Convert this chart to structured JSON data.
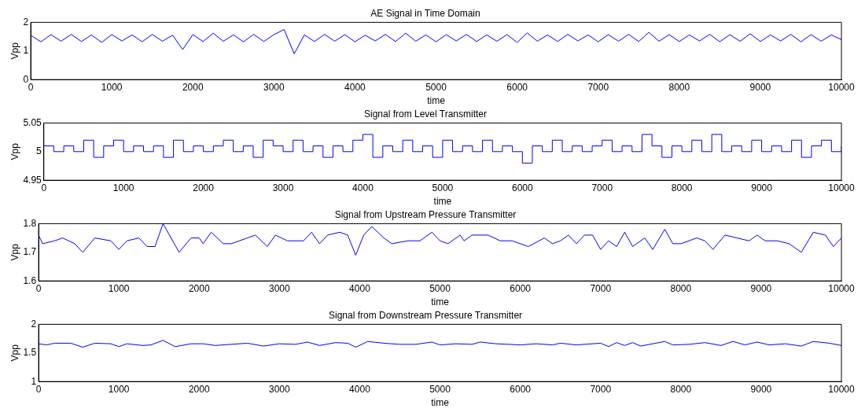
{
  "chart_data": [
    {
      "type": "line",
      "title": "AE Signal in Time Domain",
      "xlabel": "time",
      "ylabel": "Vpp",
      "xlim": [
        0,
        10000
      ],
      "xticks": [
        0,
        1000,
        2000,
        3000,
        4000,
        5000,
        6000,
        7000,
        8000,
        9000,
        10000
      ],
      "ylim": [
        0,
        2
      ],
      "yticks": [
        0,
        1,
        2
      ],
      "series": [
        {
          "color": "#0000ff",
          "x": [
            0,
            125,
            250,
            375,
            500,
            625,
            750,
            875,
            1000,
            1125,
            1250,
            1375,
            1500,
            1625,
            1750,
            1875,
            2000,
            2125,
            2250,
            2375,
            2500,
            2625,
            2750,
            2875,
            3000,
            3125,
            3250,
            3375,
            3500,
            3625,
            3750,
            3875,
            4000,
            4125,
            4250,
            4375,
            4500,
            4625,
            4750,
            4875,
            5000,
            5125,
            5250,
            5375,
            5500,
            5625,
            5750,
            5875,
            6000,
            6125,
            6250,
            6375,
            6500,
            6625,
            6750,
            6875,
            7000,
            7125,
            7250,
            7375,
            7500,
            7625,
            7750,
            7875,
            8000,
            8125,
            8250,
            8375,
            8500,
            8625,
            8750,
            8875,
            9000,
            9125,
            9250,
            9375,
            9500,
            9625,
            9750,
            9875,
            10000
          ],
          "values": [
            1.55,
            1.32,
            1.57,
            1.34,
            1.58,
            1.33,
            1.56,
            1.3,
            1.57,
            1.35,
            1.56,
            1.32,
            1.58,
            1.34,
            1.55,
            1.05,
            1.57,
            1.33,
            1.62,
            1.34,
            1.56,
            1.32,
            1.58,
            1.33,
            1.57,
            1.75,
            0.9,
            1.56,
            1.33,
            1.58,
            1.34,
            1.57,
            1.32,
            1.55,
            1.35,
            1.58,
            1.33,
            1.62,
            1.34,
            1.56,
            1.32,
            1.57,
            1.35,
            1.58,
            1.33,
            1.56,
            1.34,
            1.57,
            1.3,
            1.63,
            1.34,
            1.56,
            1.33,
            1.58,
            1.35,
            1.56,
            1.32,
            1.57,
            1.34,
            1.58,
            1.33,
            1.65,
            1.34,
            1.57,
            1.33,
            1.56,
            1.35,
            1.58,
            1.32,
            1.57,
            1.34,
            1.6,
            1.33,
            1.56,
            1.35,
            1.58,
            1.32,
            1.57,
            1.34,
            1.56,
            1.4
          ]
        }
      ]
    },
    {
      "type": "step",
      "title": "Signal from Level Transmitter",
      "xlabel": "time",
      "ylabel": "Vpp",
      "xlim": [
        0,
        10000
      ],
      "xticks": [
        0,
        1000,
        2000,
        3000,
        4000,
        5000,
        6000,
        7000,
        8000,
        9000,
        10000
      ],
      "ylim": [
        4.95,
        5.05
      ],
      "yticks": [
        4.95,
        5,
        5.05
      ],
      "series": [
        {
          "color": "#0000ff",
          "x": [
            0,
            125,
            250,
            375,
            500,
            625,
            750,
            875,
            1000,
            1125,
            1250,
            1375,
            1500,
            1625,
            1750,
            1875,
            2000,
            2125,
            2250,
            2375,
            2500,
            2625,
            2750,
            2875,
            3000,
            3125,
            3250,
            3375,
            3500,
            3625,
            3750,
            3875,
            4000,
            4125,
            4250,
            4375,
            4500,
            4625,
            4750,
            4875,
            5000,
            5125,
            5250,
            5375,
            5500,
            5625,
            5750,
            5875,
            6000,
            6125,
            6250,
            6375,
            6500,
            6625,
            6750,
            6875,
            7000,
            7125,
            7250,
            7375,
            7500,
            7625,
            7750,
            7875,
            8000,
            8125,
            8250,
            8375,
            8500,
            8625,
            8750,
            8875,
            9000,
            9125,
            9250,
            9375,
            9500,
            9625,
            9750,
            9875,
            10000
          ],
          "values": [
            5.01,
            5,
            5.01,
            5,
            5.02,
            4.99,
            5.01,
            5.02,
            5,
            5.01,
            5,
            5.01,
            4.99,
            5.02,
            5,
            5.01,
            5,
            5.01,
            5.02,
            5,
            5.01,
            4.99,
            5.02,
            5.01,
            5,
            5.02,
            5,
            5.01,
            4.99,
            5.01,
            5,
            5.02,
            5.03,
            4.99,
            5.01,
            5,
            5.02,
            5,
            5.01,
            4.99,
            5.02,
            5,
            5.01,
            5,
            5.02,
            5,
            5.01,
            5,
            4.98,
            5.01,
            5,
            5.02,
            5,
            5.01,
            5,
            5.01,
            5.02,
            5,
            5.01,
            5,
            5.03,
            5.01,
            4.99,
            5.01,
            5,
            5.02,
            5,
            5.03,
            5,
            5.01,
            5,
            5.02,
            5,
            5.01,
            5,
            5.02,
            4.99,
            5.01,
            5.02,
            5,
            5.01
          ]
        }
      ]
    },
    {
      "type": "line",
      "title": "Signal from Upstream Pressure Transmitter",
      "xlabel": "time",
      "ylabel": "Vpp",
      "xlim": [
        0,
        10000
      ],
      "xticks": [
        0,
        1000,
        2000,
        3000,
        4000,
        5000,
        6000,
        7000,
        8000,
        9000,
        10000
      ],
      "ylim": [
        1.6,
        1.8
      ],
      "yticks": [
        1.6,
        1.7,
        1.8
      ],
      "series": [
        {
          "color": "#0000ff",
          "x": [
            0,
            50,
            200,
            300,
            450,
            550,
            700,
            900,
            1000,
            1100,
            1250,
            1350,
            1450,
            1550,
            1750,
            1900,
            2000,
            2050,
            2150,
            2300,
            2400,
            2600,
            2700,
            2850,
            2950,
            3100,
            3300,
            3400,
            3500,
            3600,
            3750,
            3850,
            3950,
            4050,
            4150,
            4300,
            4400,
            4600,
            4750,
            4900,
            5000,
            5100,
            5250,
            5300,
            5400,
            5600,
            5750,
            5900,
            6100,
            6300,
            6400,
            6500,
            6600,
            6700,
            6800,
            6900,
            7000,
            7100,
            7200,
            7300,
            7400,
            7550,
            7650,
            7800,
            7900,
            8000,
            8100,
            8200,
            8300,
            8400,
            8550,
            8700,
            8850,
            8950,
            9050,
            9200,
            9350,
            9500,
            9650,
            9800,
            9900,
            10000
          ],
          "values": [
            1.76,
            1.73,
            1.74,
            1.75,
            1.73,
            1.7,
            1.75,
            1.74,
            1.71,
            1.74,
            1.75,
            1.72,
            1.72,
            1.8,
            1.7,
            1.75,
            1.75,
            1.73,
            1.77,
            1.73,
            1.73,
            1.75,
            1.76,
            1.72,
            1.76,
            1.74,
            1.74,
            1.77,
            1.73,
            1.76,
            1.77,
            1.76,
            1.69,
            1.76,
            1.79,
            1.75,
            1.73,
            1.74,
            1.74,
            1.77,
            1.74,
            1.73,
            1.76,
            1.74,
            1.76,
            1.76,
            1.74,
            1.74,
            1.72,
            1.75,
            1.73,
            1.74,
            1.76,
            1.73,
            1.76,
            1.76,
            1.71,
            1.74,
            1.72,
            1.77,
            1.72,
            1.75,
            1.71,
            1.78,
            1.73,
            1.73,
            1.74,
            1.75,
            1.74,
            1.71,
            1.76,
            1.75,
            1.74,
            1.76,
            1.74,
            1.74,
            1.73,
            1.7,
            1.77,
            1.76,
            1.72,
            1.75
          ]
        }
      ]
    },
    {
      "type": "line",
      "title": "Signal from Downstream Pressure Transmitter",
      "xlabel": "time",
      "ylabel": "Vpp",
      "xlim": [
        0,
        10000
      ],
      "xticks": [
        0,
        1000,
        2000,
        3000,
        4000,
        5000,
        6000,
        7000,
        8000,
        9000,
        10000
      ],
      "ylim": [
        1,
        2
      ],
      "yticks": [
        1,
        1.5,
        2
      ],
      "series": [
        {
          "color": "#0000ff",
          "x": [
            0,
            100,
            200,
            400,
            550,
            700,
            900,
            1000,
            1100,
            1300,
            1400,
            1550,
            1700,
            1900,
            2050,
            2200,
            2400,
            2600,
            2800,
            3000,
            3200,
            3350,
            3500,
            3700,
            3850,
            3950,
            4100,
            4300,
            4500,
            4700,
            4900,
            5000,
            5200,
            5400,
            5500,
            5700,
            6000,
            6200,
            6400,
            6500,
            6700,
            7000,
            7100,
            7200,
            7300,
            7400,
            7500,
            7650,
            7800,
            7900,
            8100,
            8300,
            8500,
            8650,
            8800,
            8950,
            9100,
            9300,
            9500,
            9650,
            9850,
            10000
          ],
          "values": [
            1.66,
            1.64,
            1.67,
            1.67,
            1.6,
            1.67,
            1.66,
            1.61,
            1.66,
            1.63,
            1.64,
            1.72,
            1.61,
            1.66,
            1.66,
            1.63,
            1.65,
            1.67,
            1.62,
            1.66,
            1.65,
            1.69,
            1.63,
            1.68,
            1.67,
            1.6,
            1.7,
            1.67,
            1.65,
            1.65,
            1.69,
            1.64,
            1.66,
            1.65,
            1.69,
            1.66,
            1.64,
            1.66,
            1.64,
            1.67,
            1.64,
            1.67,
            1.61,
            1.68,
            1.63,
            1.68,
            1.62,
            1.66,
            1.7,
            1.64,
            1.65,
            1.68,
            1.63,
            1.7,
            1.64,
            1.69,
            1.64,
            1.66,
            1.62,
            1.7,
            1.67,
            1.63
          ]
        }
      ]
    }
  ]
}
